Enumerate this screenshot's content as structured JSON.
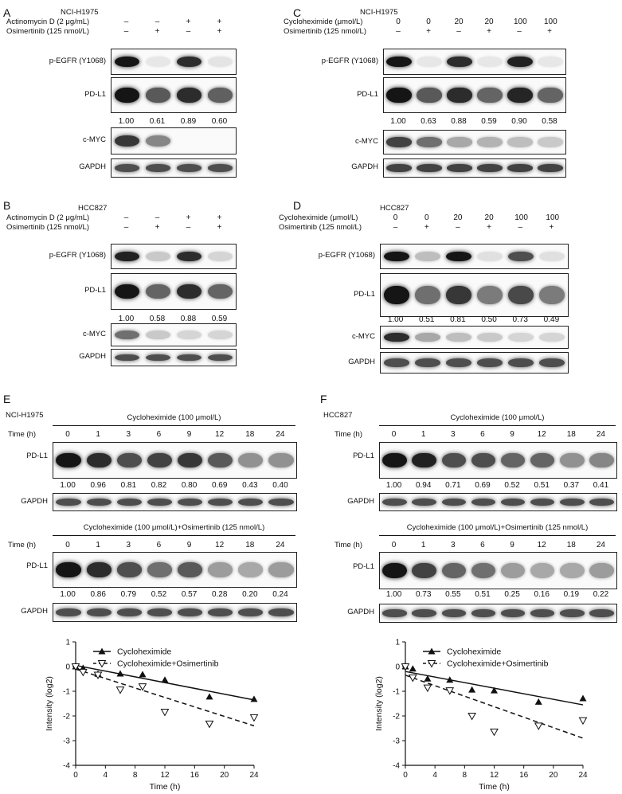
{
  "panels": {
    "A": {
      "letter": "A",
      "cell_line": "NCI-H1975",
      "cond_rows": [
        {
          "label": "Actinomycin D (2 μg/mL)",
          "signs": [
            "–",
            "–",
            "+",
            "+"
          ]
        },
        {
          "label": "Osimertinib (125 nmol/L)",
          "signs": [
            "–",
            "+",
            "–",
            "+"
          ]
        }
      ],
      "blots": [
        {
          "label": "p-EGFR (Y1068)",
          "intensities": [
            0.95,
            0.02,
            0.85,
            0.03
          ]
        },
        {
          "label": "PD-L1",
          "intensities": [
            0.95,
            0.65,
            0.85,
            0.62
          ]
        },
        {
          "label": "c-MYC",
          "intensities": [
            0.8,
            0.45,
            0.0,
            0.0
          ]
        },
        {
          "label": "GAPDH",
          "intensities": [
            0.7,
            0.7,
            0.7,
            0.7
          ]
        }
      ],
      "quant": [
        "1.00",
        "0.61",
        "0.89",
        "0.60"
      ]
    },
    "B": {
      "letter": "B",
      "cell_line": "HCC827",
      "cond_rows": [
        {
          "label": "Actinomycin D (2 μg/mL)",
          "signs": [
            "–",
            "–",
            "+",
            "+"
          ]
        },
        {
          "label": "Osimertinib (125 nmol/L)",
          "signs": [
            "–",
            "+",
            "–",
            "+"
          ]
        }
      ],
      "blots": [
        {
          "label": "p-EGFR (Y1068)",
          "intensities": [
            0.9,
            0.15,
            0.85,
            0.1
          ]
        },
        {
          "label": "PD-L1",
          "intensities": [
            0.95,
            0.6,
            0.85,
            0.6
          ]
        },
        {
          "label": "c-MYC",
          "intensities": [
            0.55,
            0.15,
            0.1,
            0.1
          ]
        },
        {
          "label": "GAPDH",
          "intensities": [
            0.7,
            0.7,
            0.7,
            0.7
          ]
        }
      ],
      "quant": [
        "1.00",
        "0.58",
        "0.88",
        "0.59"
      ]
    },
    "C": {
      "letter": "C",
      "cell_line": "NCI-H1975",
      "cond_rows": [
        {
          "label": "Cycloheximide (μmol/L)",
          "signs": [
            "0",
            "0",
            "20",
            "20",
            "100",
            "100"
          ]
        },
        {
          "label": "Osimertinib (125 nmol/L)",
          "signs": [
            "–",
            "+",
            "–",
            "+",
            "–",
            "+"
          ]
        }
      ],
      "blots": [
        {
          "label": "p-EGFR (Y1068)",
          "intensities": [
            0.95,
            0.02,
            0.85,
            0.02,
            0.9,
            0.02
          ]
        },
        {
          "label": "PD-L1",
          "intensities": [
            0.95,
            0.65,
            0.85,
            0.6,
            0.88,
            0.6
          ]
        },
        {
          "label": "c-MYC",
          "intensities": [
            0.75,
            0.55,
            0.3,
            0.25,
            0.2,
            0.15
          ]
        },
        {
          "label": "GAPDH",
          "intensities": [
            0.75,
            0.75,
            0.75,
            0.75,
            0.75,
            0.75
          ]
        }
      ],
      "quant": [
        "1.00",
        "0.63",
        "0.88",
        "0.59",
        "0.90",
        "0.58"
      ]
    },
    "D": {
      "letter": "D",
      "cell_line": "HCC827",
      "cond_rows": [
        {
          "label": "Cycloheximide (μmol/L)",
          "signs": [
            "0",
            "0",
            "20",
            "20",
            "100",
            "100"
          ]
        },
        {
          "label": "Osimertinib (125 nmol/L)",
          "signs": [
            "–",
            "+",
            "–",
            "+",
            "–",
            "+"
          ]
        }
      ],
      "blots": [
        {
          "label": "p-EGFR (Y1068)",
          "intensities": [
            0.95,
            0.2,
            0.95,
            0.05,
            0.7,
            0.05
          ]
        },
        {
          "label": "PD-L1",
          "intensities": [
            0.95,
            0.55,
            0.8,
            0.5,
            0.72,
            0.5
          ]
        },
        {
          "label": "c-MYC",
          "intensities": [
            0.85,
            0.3,
            0.2,
            0.15,
            0.1,
            0.1
          ]
        },
        {
          "label": "GAPDH",
          "intensities": [
            0.7,
            0.7,
            0.7,
            0.7,
            0.7,
            0.7
          ]
        }
      ],
      "quant": [
        "1.00",
        "0.51",
        "0.81",
        "0.50",
        "0.73",
        "0.49"
      ]
    },
    "E": {
      "letter": "E",
      "cell_line": "NCI-H1975",
      "time_label": "Time (h)",
      "times": [
        "0",
        "1",
        "3",
        "6",
        "9",
        "12",
        "18",
        "24"
      ],
      "top_title": "Cycloheximide (100 μmol/L)",
      "top_pdl1": [
        0.95,
        0.85,
        0.7,
        0.75,
        0.8,
        0.65,
        0.4,
        0.4
      ],
      "top_quant": [
        "1.00",
        "0.96",
        "0.81",
        "0.82",
        "0.80",
        "0.69",
        "0.43",
        "0.40"
      ],
      "bottom_title": "Cycloheximide (100 μmol/L)+Osimertinib (125 nmol/L)",
      "bottom_pdl1": [
        0.95,
        0.85,
        0.7,
        0.55,
        0.65,
        0.35,
        0.3,
        0.35
      ],
      "bottom_quant": [
        "1.00",
        "0.86",
        "0.79",
        "0.52",
        "0.57",
        "0.28",
        "0.20",
        "0.24"
      ],
      "pdl1_label": "PD-L1",
      "gapdh_label": "GAPDH"
    },
    "F": {
      "letter": "F",
      "cell_line": "HCC827",
      "time_label": "Time (h)",
      "times": [
        "0",
        "1",
        "3",
        "6",
        "9",
        "12",
        "18",
        "24"
      ],
      "top_title": "Cycloheximide (100 μmol/L)",
      "top_pdl1": [
        0.95,
        0.9,
        0.7,
        0.7,
        0.6,
        0.6,
        0.4,
        0.45
      ],
      "top_quant": [
        "1.00",
        "0.94",
        "0.71",
        "0.69",
        "0.52",
        "0.51",
        "0.37",
        "0.41"
      ],
      "bottom_title": "Cycloheximide (100 μmol/L)+Osimertinib (125 nmol/L)",
      "bottom_pdl1": [
        0.95,
        0.75,
        0.6,
        0.55,
        0.35,
        0.3,
        0.3,
        0.35
      ],
      "bottom_quant": [
        "1.00",
        "0.73",
        "0.55",
        "0.51",
        "0.25",
        "0.16",
        "0.19",
        "0.22"
      ],
      "pdl1_label": "PD-L1",
      "gapdh_label": "GAPDH"
    }
  },
  "chart_data": [
    {
      "type": "scatter",
      "panel": "E",
      "xlabel": "Time (h)",
      "ylabel": "Intensity (log2)",
      "xlim": [
        0,
        24
      ],
      "ylim": [
        -4,
        1
      ],
      "xticks": [
        0,
        4,
        8,
        12,
        16,
        20,
        24
      ],
      "yticks": [
        1,
        0,
        -1,
        -2,
        -3,
        -4
      ],
      "legend": "top-right",
      "series": [
        {
          "name": "Cycloheximide",
          "marker": "triangle-up-filled",
          "line": "solid",
          "x": [
            0,
            1,
            3,
            6,
            9,
            12,
            18,
            24
          ],
          "y": [
            0,
            -0.06,
            -0.3,
            -0.29,
            -0.32,
            -0.54,
            -1.22,
            -1.32
          ],
          "fit": [
            [
              0,
              0.05
            ],
            [
              24,
              -1.35
            ]
          ]
        },
        {
          "name": "Cycloheximide+Osimertinib",
          "marker": "triangle-down-open",
          "line": "dashed",
          "x": [
            0,
            1,
            3,
            6,
            9,
            12,
            18,
            24
          ],
          "y": [
            0,
            -0.22,
            -0.34,
            -0.94,
            -0.81,
            -1.84,
            -2.32,
            -2.06
          ],
          "fit": [
            [
              0,
              -0.1
            ],
            [
              24,
              -2.4
            ]
          ]
        }
      ]
    },
    {
      "type": "scatter",
      "panel": "F",
      "xlabel": "Time (h)",
      "ylabel": "Intensity (log2)",
      "xlim": [
        0,
        24
      ],
      "ylim": [
        -4,
        1
      ],
      "xticks": [
        0,
        4,
        8,
        12,
        16,
        20,
        24
      ],
      "yticks": [
        1,
        0,
        -1,
        -2,
        -3,
        -4
      ],
      "legend": "top-right",
      "series": [
        {
          "name": "Cycloheximide",
          "marker": "triangle-up-filled",
          "line": "solid",
          "x": [
            0,
            1,
            3,
            6,
            9,
            12,
            18,
            24
          ],
          "y": [
            0,
            -0.09,
            -0.49,
            -0.54,
            -0.94,
            -0.97,
            -1.43,
            -1.29
          ],
          "fit": [
            [
              0,
              -0.2
            ],
            [
              24,
              -1.55
            ]
          ]
        },
        {
          "name": "Cycloheximide+Osimertinib",
          "marker": "triangle-down-open",
          "line": "dashed",
          "x": [
            0,
            1,
            3,
            6,
            9,
            12,
            18,
            24
          ],
          "y": [
            0,
            -0.45,
            -0.86,
            -0.97,
            -2.0,
            -2.64,
            -2.4,
            -2.18
          ],
          "fit": [
            [
              0,
              -0.35
            ],
            [
              24,
              -2.9
            ]
          ]
        }
      ]
    }
  ]
}
